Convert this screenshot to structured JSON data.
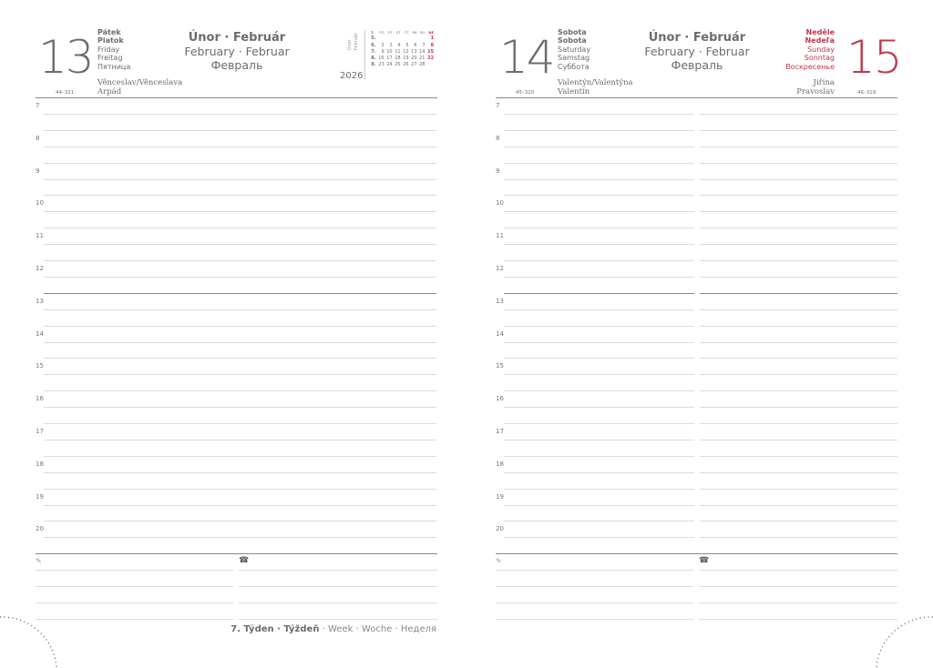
{
  "left_page": {
    "day_number": "13",
    "day_names": [
      "Pátek",
      "Piatok",
      "Friday",
      "Freitag",
      "Пятница"
    ],
    "month": {
      "line1": "Únor · Február",
      "line2": "February · Februar",
      "line3": "Февраль"
    },
    "name_days": [
      "Věnceslav/Věnceslava",
      "Arpád"
    ],
    "day_code": "44–321",
    "year": "2026",
    "mini_calendar": {
      "side_label": [
        "Únor",
        "Február"
      ],
      "header": [
        "T.",
        "PO",
        "ÚT",
        "ST",
        "ČT",
        "PÁ",
        "SO",
        "NE"
      ],
      "weeks": [
        [
          "5.",
          "",
          "",
          "",
          "",
          "",
          "",
          "1"
        ],
        [
          "6.",
          "2",
          "3",
          "4",
          "5",
          "6",
          "7",
          "8"
        ],
        [
          "7.",
          "9",
          "10",
          "11",
          "12",
          "13",
          "14",
          "15"
        ],
        [
          "8.",
          "16",
          "17",
          "18",
          "19",
          "20",
          "21",
          "22"
        ],
        [
          "9.",
          "23",
          "24",
          "25",
          "26",
          "27",
          "28",
          ""
        ]
      ]
    },
    "hours": [
      "7",
      "8",
      "9",
      "10",
      "11",
      "12",
      "13",
      "14",
      "15",
      "16",
      "17",
      "18",
      "19",
      "20"
    ],
    "notes_icon": "pencil-icon",
    "phone_icon": "phone-icon"
  },
  "right_page": {
    "saturday": {
      "day_number": "14",
      "day_names": [
        "Sobota",
        "Sobota",
        "Saturday",
        "Samstag",
        "Суббота"
      ],
      "name_days": [
        "Valentýn/Valentýna",
        "Valentín"
      ],
      "day_code": "45–320"
    },
    "sunday": {
      "day_number": "15",
      "day_names": [
        "Neděle",
        "Nedeľa",
        "Sunday",
        "Sonntag",
        "Воскресенье"
      ],
      "name_days": [
        "Jiřina",
        "Pravoslav"
      ],
      "day_code": "46–319"
    },
    "month": {
      "line1": "Únor · Február",
      "line2": "February · Februar",
      "line3": "Февраль"
    },
    "hours": [
      "7",
      "8",
      "9",
      "10",
      "11",
      "12",
      "13",
      "14",
      "15",
      "16",
      "17",
      "18",
      "19",
      "20"
    ]
  },
  "footer": {
    "week_bold": "7. Týden · Týždeň",
    "week_rest": " · Week · Woche · Неделя"
  },
  "colors": {
    "text": "#6f6b68",
    "sunday_red": "#c0394b",
    "rule": "#dcdcdc"
  }
}
